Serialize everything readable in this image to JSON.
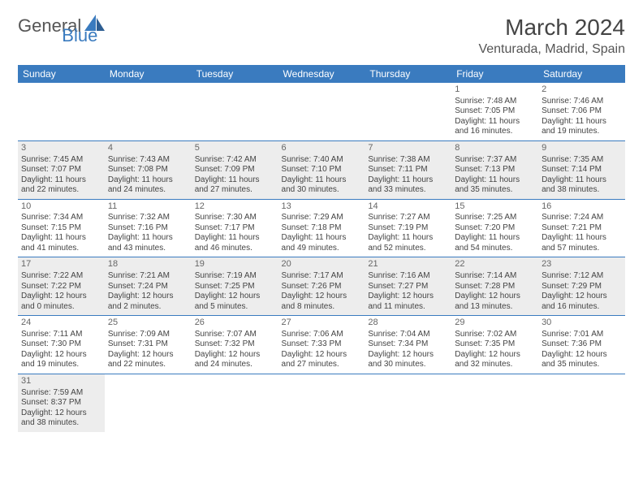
{
  "logo": {
    "general": "General",
    "blue": "Blue"
  },
  "title": "March 2024",
  "location": "Venturada, Madrid, Spain",
  "colors": {
    "accent": "#3a7bbf",
    "shade": "#ededed",
    "text": "#444"
  },
  "day_headers": [
    "Sunday",
    "Monday",
    "Tuesday",
    "Wednesday",
    "Thursday",
    "Friday",
    "Saturday"
  ],
  "weeks": [
    {
      "shaded": false,
      "days": [
        null,
        null,
        null,
        null,
        null,
        {
          "n": "1",
          "rise": "Sunrise: 7:48 AM",
          "set": "Sunset: 7:05 PM",
          "dl": "Daylight: 11 hours and 16 minutes."
        },
        {
          "n": "2",
          "rise": "Sunrise: 7:46 AM",
          "set": "Sunset: 7:06 PM",
          "dl": "Daylight: 11 hours and 19 minutes."
        }
      ]
    },
    {
      "shaded": true,
      "days": [
        {
          "n": "3",
          "rise": "Sunrise: 7:45 AM",
          "set": "Sunset: 7:07 PM",
          "dl": "Daylight: 11 hours and 22 minutes."
        },
        {
          "n": "4",
          "rise": "Sunrise: 7:43 AM",
          "set": "Sunset: 7:08 PM",
          "dl": "Daylight: 11 hours and 24 minutes."
        },
        {
          "n": "5",
          "rise": "Sunrise: 7:42 AM",
          "set": "Sunset: 7:09 PM",
          "dl": "Daylight: 11 hours and 27 minutes."
        },
        {
          "n": "6",
          "rise": "Sunrise: 7:40 AM",
          "set": "Sunset: 7:10 PM",
          "dl": "Daylight: 11 hours and 30 minutes."
        },
        {
          "n": "7",
          "rise": "Sunrise: 7:38 AM",
          "set": "Sunset: 7:11 PM",
          "dl": "Daylight: 11 hours and 33 minutes."
        },
        {
          "n": "8",
          "rise": "Sunrise: 7:37 AM",
          "set": "Sunset: 7:13 PM",
          "dl": "Daylight: 11 hours and 35 minutes."
        },
        {
          "n": "9",
          "rise": "Sunrise: 7:35 AM",
          "set": "Sunset: 7:14 PM",
          "dl": "Daylight: 11 hours and 38 minutes."
        }
      ]
    },
    {
      "shaded": false,
      "days": [
        {
          "n": "10",
          "rise": "Sunrise: 7:34 AM",
          "set": "Sunset: 7:15 PM",
          "dl": "Daylight: 11 hours and 41 minutes."
        },
        {
          "n": "11",
          "rise": "Sunrise: 7:32 AM",
          "set": "Sunset: 7:16 PM",
          "dl": "Daylight: 11 hours and 43 minutes."
        },
        {
          "n": "12",
          "rise": "Sunrise: 7:30 AM",
          "set": "Sunset: 7:17 PM",
          "dl": "Daylight: 11 hours and 46 minutes."
        },
        {
          "n": "13",
          "rise": "Sunrise: 7:29 AM",
          "set": "Sunset: 7:18 PM",
          "dl": "Daylight: 11 hours and 49 minutes."
        },
        {
          "n": "14",
          "rise": "Sunrise: 7:27 AM",
          "set": "Sunset: 7:19 PM",
          "dl": "Daylight: 11 hours and 52 minutes."
        },
        {
          "n": "15",
          "rise": "Sunrise: 7:25 AM",
          "set": "Sunset: 7:20 PM",
          "dl": "Daylight: 11 hours and 54 minutes."
        },
        {
          "n": "16",
          "rise": "Sunrise: 7:24 AM",
          "set": "Sunset: 7:21 PM",
          "dl": "Daylight: 11 hours and 57 minutes."
        }
      ]
    },
    {
      "shaded": true,
      "days": [
        {
          "n": "17",
          "rise": "Sunrise: 7:22 AM",
          "set": "Sunset: 7:22 PM",
          "dl": "Daylight: 12 hours and 0 minutes."
        },
        {
          "n": "18",
          "rise": "Sunrise: 7:21 AM",
          "set": "Sunset: 7:24 PM",
          "dl": "Daylight: 12 hours and 2 minutes."
        },
        {
          "n": "19",
          "rise": "Sunrise: 7:19 AM",
          "set": "Sunset: 7:25 PM",
          "dl": "Daylight: 12 hours and 5 minutes."
        },
        {
          "n": "20",
          "rise": "Sunrise: 7:17 AM",
          "set": "Sunset: 7:26 PM",
          "dl": "Daylight: 12 hours and 8 minutes."
        },
        {
          "n": "21",
          "rise": "Sunrise: 7:16 AM",
          "set": "Sunset: 7:27 PM",
          "dl": "Daylight: 12 hours and 11 minutes."
        },
        {
          "n": "22",
          "rise": "Sunrise: 7:14 AM",
          "set": "Sunset: 7:28 PM",
          "dl": "Daylight: 12 hours and 13 minutes."
        },
        {
          "n": "23",
          "rise": "Sunrise: 7:12 AM",
          "set": "Sunset: 7:29 PM",
          "dl": "Daylight: 12 hours and 16 minutes."
        }
      ]
    },
    {
      "shaded": false,
      "days": [
        {
          "n": "24",
          "rise": "Sunrise: 7:11 AM",
          "set": "Sunset: 7:30 PM",
          "dl": "Daylight: 12 hours and 19 minutes."
        },
        {
          "n": "25",
          "rise": "Sunrise: 7:09 AM",
          "set": "Sunset: 7:31 PM",
          "dl": "Daylight: 12 hours and 22 minutes."
        },
        {
          "n": "26",
          "rise": "Sunrise: 7:07 AM",
          "set": "Sunset: 7:32 PM",
          "dl": "Daylight: 12 hours and 24 minutes."
        },
        {
          "n": "27",
          "rise": "Sunrise: 7:06 AM",
          "set": "Sunset: 7:33 PM",
          "dl": "Daylight: 12 hours and 27 minutes."
        },
        {
          "n": "28",
          "rise": "Sunrise: 7:04 AM",
          "set": "Sunset: 7:34 PM",
          "dl": "Daylight: 12 hours and 30 minutes."
        },
        {
          "n": "29",
          "rise": "Sunrise: 7:02 AM",
          "set": "Sunset: 7:35 PM",
          "dl": "Daylight: 12 hours and 32 minutes."
        },
        {
          "n": "30",
          "rise": "Sunrise: 7:01 AM",
          "set": "Sunset: 7:36 PM",
          "dl": "Daylight: 12 hours and 35 minutes."
        }
      ]
    },
    {
      "shaded": true,
      "days": [
        {
          "n": "31",
          "rise": "Sunrise: 7:59 AM",
          "set": "Sunset: 8:37 PM",
          "dl": "Daylight: 12 hours and 38 minutes."
        },
        null,
        null,
        null,
        null,
        null,
        null
      ]
    }
  ]
}
